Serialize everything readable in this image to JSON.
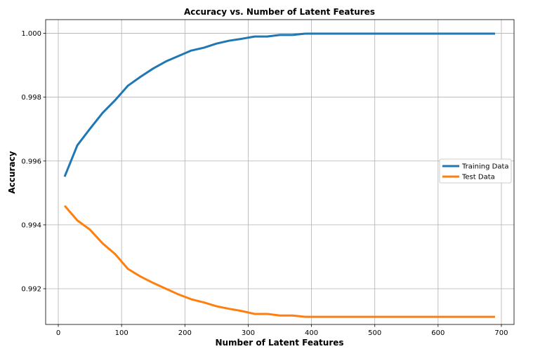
{
  "chart_data": {
    "type": "line",
    "title": "Accuracy vs. Number of Latent Features",
    "xlabel": "Number of Latent Features",
    "ylabel": "Accuracy",
    "xlim": [
      -20,
      720
    ],
    "ylim": [
      0.99088,
      1.00043
    ],
    "xticks": [
      0,
      100,
      200,
      300,
      400,
      500,
      600,
      700
    ],
    "yticks": [
      0.992,
      0.994,
      0.996,
      0.998,
      1.0
    ],
    "ytick_labels": [
      "0.992",
      "0.994",
      "0.996",
      "0.998",
      "1.000"
    ],
    "grid": true,
    "legend_position": "center-right",
    "x": [
      10,
      30,
      50,
      70,
      90,
      110,
      130,
      150,
      170,
      190,
      210,
      230,
      250,
      270,
      290,
      310,
      330,
      350,
      370,
      390,
      410,
      430,
      450,
      470,
      490,
      510,
      530,
      550,
      570,
      590,
      610,
      630,
      650,
      670,
      690
    ],
    "series": [
      {
        "name": "Training Data",
        "color": "#1f77b4",
        "values": [
          0.99551,
          0.99649,
          0.99701,
          0.99751,
          0.99791,
          0.99836,
          0.99864,
          0.9989,
          0.99912,
          0.99929,
          0.99946,
          0.99955,
          0.99968,
          0.99977,
          0.99983,
          0.9999,
          0.9999,
          0.99995,
          0.99995,
          0.99999,
          0.99999,
          0.99999,
          0.99999,
          0.99999,
          0.99999,
          0.99999,
          0.99999,
          0.99999,
          0.99999,
          0.99999,
          0.99999,
          0.99999,
          0.99999,
          0.99999,
          0.99999
        ]
      },
      {
        "name": "Test Data",
        "color": "#ff7f0e",
        "values": [
          0.9946,
          0.99414,
          0.99385,
          0.99342,
          0.99308,
          0.99262,
          0.99238,
          0.99218,
          0.992,
          0.99182,
          0.99167,
          0.99157,
          0.99145,
          0.99137,
          0.9913,
          0.99121,
          0.99121,
          0.99116,
          0.99116,
          0.99112,
          0.99112,
          0.99112,
          0.99112,
          0.99112,
          0.99112,
          0.99112,
          0.99112,
          0.99112,
          0.99112,
          0.99112,
          0.99112,
          0.99112,
          0.99112,
          0.99112,
          0.99112
        ]
      }
    ]
  }
}
